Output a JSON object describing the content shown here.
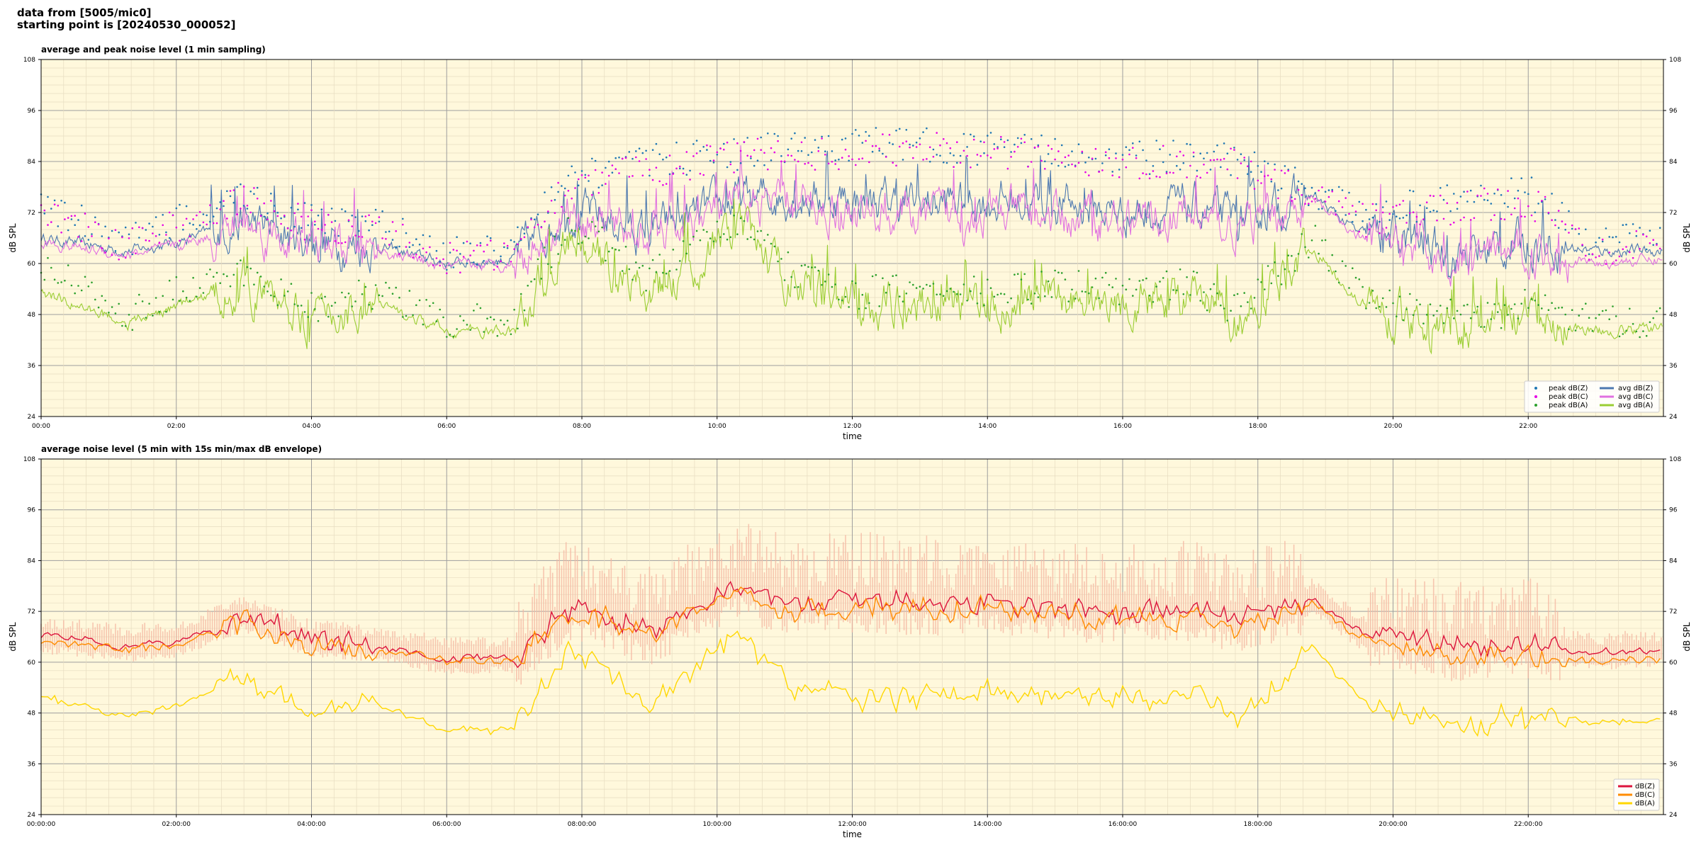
{
  "header": {
    "line1": "data from [5005/mic0]",
    "line2": "starting point is [20240530_000052]"
  },
  "colors": {
    "plot_bg": "#fff8dc",
    "peak_z": "#1f77b4",
    "peak_c": "#e600e6",
    "peak_a": "#2ca02c",
    "avg_z": "#4c78b0",
    "avg_c": "#e070e0",
    "avg_a": "#9acd32",
    "db_z": "#dc143c",
    "db_c": "#ff8c00",
    "db_a": "#ffd700",
    "envelope": "#f4b6a0"
  },
  "chart_data": [
    {
      "type": "line",
      "title": "average and peak noise level (1 min sampling)",
      "xlabel": "time",
      "ylabel": "dB SPL",
      "ylim": [
        24,
        108
      ],
      "yticks": [
        "24",
        "36",
        "48",
        "60",
        "72",
        "84",
        "96",
        "108"
      ],
      "xlim_hours": [
        0,
        24
      ],
      "xticks": [
        "00:00",
        "02:00",
        "04:00",
        "06:00",
        "08:00",
        "10:00",
        "12:00",
        "14:00",
        "16:00",
        "18:00",
        "20:00",
        "22:00"
      ],
      "grid": true,
      "legend_position": "bottom-right",
      "legend": [
        "peak dB(Z)",
        "peak dB(C)",
        "peak dB(A)",
        "avg dB(Z)",
        "avg dB(C)",
        "avg dB(A)"
      ],
      "segments_hours": [
        0,
        1.3,
        2.0,
        3.0,
        4.0,
        5.0,
        6.0,
        7.0,
        7.8,
        9.0,
        10.3,
        11.0,
        12.0,
        13.0,
        14.0,
        15.0,
        16.0,
        17.0,
        17.7,
        18.8,
        19.5,
        20.0,
        21.0,
        22.0,
        23.0,
        24.0
      ],
      "series": [
        {
          "name": "avg dB(Z)",
          "values": [
            66,
            63,
            65,
            70,
            65,
            64,
            60,
            61,
            73,
            67,
            75,
            76,
            75,
            74,
            75,
            74,
            72,
            73,
            70,
            76,
            67,
            66,
            62,
            65,
            63,
            63
          ]
        },
        {
          "name": "avg dB(C)",
          "values": [
            65,
            62,
            64,
            69,
            64,
            63,
            59,
            60,
            72,
            66,
            74,
            74,
            72,
            71,
            72,
            71,
            70,
            71,
            68,
            75,
            66,
            64,
            60,
            63,
            60,
            61
          ]
        },
        {
          "name": "avg dB(A)",
          "values": [
            53,
            46,
            50,
            55,
            47,
            50,
            44,
            44,
            66,
            52,
            68,
            57,
            50,
            51,
            50,
            52,
            51,
            52,
            46,
            64,
            51,
            48,
            44,
            47,
            44,
            45
          ]
        },
        {
          "name": "peak dB(Z)",
          "values": [
            74,
            65,
            70,
            76,
            70,
            69,
            62,
            64,
            80,
            84,
            86,
            87,
            88,
            88,
            87,
            86,
            85,
            85,
            84,
            77,
            72,
            73,
            75,
            77,
            64,
            67
          ]
        },
        {
          "name": "peak dB(C)",
          "values": [
            72,
            64,
            69,
            75,
            69,
            68,
            61,
            63,
            79,
            82,
            85,
            86,
            86,
            87,
            86,
            85,
            84,
            84,
            83,
            76,
            70,
            71,
            73,
            75,
            63,
            66
          ]
        },
        {
          "name": "peak dB(A)",
          "values": [
            60,
            48,
            53,
            58,
            50,
            53,
            46,
            47,
            70,
            57,
            70,
            59,
            53,
            54,
            53,
            55,
            54,
            55,
            49,
            66,
            54,
            51,
            47,
            50,
            46,
            47
          ]
        }
      ]
    },
    {
      "type": "line",
      "title": "average noise level (5 min with 15s min/max dB envelope)",
      "xlabel": "time",
      "ylabel": "dB SPL",
      "ylim": [
        24,
        108
      ],
      "yticks": [
        "24",
        "36",
        "48",
        "60",
        "72",
        "84",
        "96",
        "108"
      ],
      "xlim_hours": [
        0,
        24
      ],
      "xticks": [
        "00:00:00",
        "02:00:00",
        "04:00:00",
        "06:00:00",
        "08:00:00",
        "10:00:00",
        "12:00:00",
        "14:00:00",
        "16:00:00",
        "18:00:00",
        "20:00:00",
        "22:00:00"
      ],
      "grid": true,
      "legend_position": "bottom-right",
      "legend": [
        "dB(Z)",
        "dB(C)",
        "dB(A)"
      ],
      "segments_hours": [
        0,
        1.3,
        2.0,
        3.0,
        4.0,
        5.0,
        6.0,
        7.0,
        7.8,
        9.0,
        10.3,
        11.0,
        12.0,
        13.0,
        14.0,
        15.0,
        16.0,
        17.0,
        17.7,
        18.8,
        19.5,
        20.0,
        21.0,
        22.0,
        23.0,
        24.0
      ],
      "series": [
        {
          "name": "dB(Z)",
          "values": [
            66,
            64,
            65,
            71,
            65,
            64,
            61,
            61,
            73,
            67,
            78,
            74,
            75,
            74,
            75,
            73,
            72,
            73,
            70,
            75,
            67,
            66,
            63,
            64,
            62,
            63
          ]
        },
        {
          "name": "dB(C)",
          "values": [
            65,
            63,
            64,
            70,
            64,
            63,
            60,
            60,
            72,
            66,
            77,
            72,
            73,
            72,
            73,
            71,
            70,
            71,
            68,
            74,
            66,
            64,
            61,
            62,
            60,
            61
          ]
        },
        {
          "name": "dB(A)",
          "values": [
            52,
            47,
            50,
            56,
            48,
            50,
            44,
            44,
            64,
            50,
            68,
            54,
            51,
            52,
            52,
            52,
            52,
            52,
            46,
            64,
            51,
            48,
            45,
            47,
            46,
            46
          ]
        }
      ]
    }
  ]
}
